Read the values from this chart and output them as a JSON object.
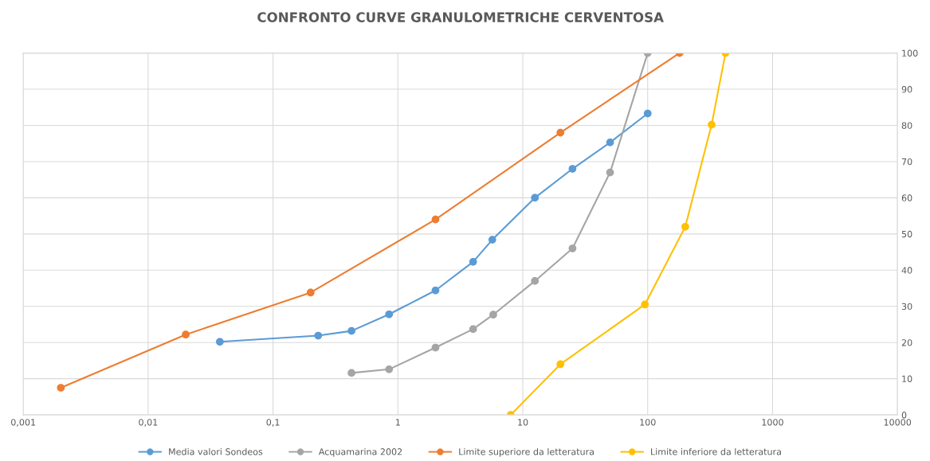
{
  "chart_data": {
    "type": "line",
    "title": "CONFRONTO CURVE GRANULOMETRICHE CERVENTOSA",
    "series": [
      {
        "name": "Media valori Sondeos",
        "color": "#5b9bd5",
        "x": [
          0.0375,
          0.23,
          0.425,
          0.85,
          2,
          4,
          5.7,
          12.5,
          25,
          50,
          100
        ],
        "values": [
          20.2,
          21.9,
          23.2,
          27.8,
          34.4,
          42.3,
          48.4,
          60,
          68,
          75.3,
          83.3
        ]
      },
      {
        "name": "Acquamarina 2002",
        "color": "#a5a5a5",
        "x": [
          0.425,
          0.85,
          2,
          4,
          5.8,
          12.5,
          25,
          50,
          100
        ],
        "values": [
          11.6,
          12.6,
          18.6,
          23.7,
          27.7,
          37,
          46,
          67,
          100
        ]
      },
      {
        "name": "Limite superiore da letteratura",
        "color": "#ed7d31",
        "x": [
          0.002,
          0.02,
          0.2,
          2,
          20,
          180
        ],
        "values": [
          7.5,
          22.2,
          33.8,
          54,
          78,
          100
        ]
      },
      {
        "name": "Limite inferiore da letteratura",
        "color": "#ffc000",
        "x": [
          8,
          20,
          95,
          200,
          325,
          420
        ],
        "values": [
          0,
          14,
          30.5,
          52,
          80.2,
          100
        ]
      }
    ],
    "log": "x",
    "xlim": [
      0.001,
      10000
    ],
    "xticks": [
      {
        "value": 0.001,
        "label": "0,001"
      },
      {
        "value": 0.01,
        "label": "0,01"
      },
      {
        "value": 0.1,
        "label": "0,1"
      },
      1,
      10,
      100,
      1000,
      10000
    ],
    "ylim": [
      0,
      100
    ],
    "yticks": [
      0,
      10,
      20,
      30,
      40,
      50,
      60,
      70,
      80,
      90,
      100
    ],
    "grid": true,
    "legend": "bottom",
    "marker": "circle",
    "line_style": "solid"
  }
}
